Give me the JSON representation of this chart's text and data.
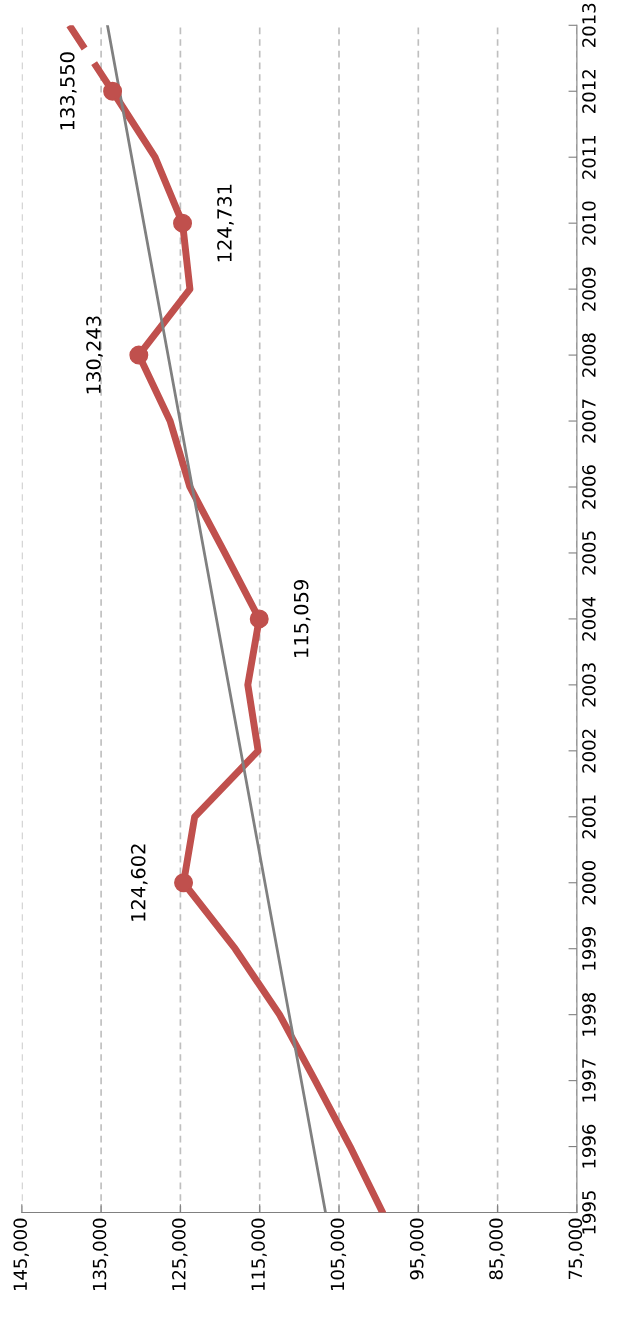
{
  "chart_data": {
    "type": "line",
    "orientation": "horizontal",
    "categories": [
      "2013",
      "2012",
      "2011",
      "2010",
      "2009",
      "2008",
      "2007",
      "2006",
      "2005",
      "2004",
      "2003",
      "2002",
      "2001",
      "2000",
      "1999",
      "1998",
      "1997",
      "1996",
      "1995"
    ],
    "series": [
      {
        "color": "#c0504d",
        "values": [
          null,
          133550,
          128200,
          124731,
          123800,
          130243,
          126300,
          123800,
          119400,
          115059,
          116500,
          115200,
          123200,
          124602,
          118100,
          112500,
          108000,
          103600,
          99500
        ]
      },
      {
        "color": "#c0504d",
        "line_style": "dashed",
        "values": [
          139000,
          133550,
          null,
          null,
          null,
          null,
          null,
          null,
          null,
          null,
          null,
          null,
          null,
          null,
          null,
          null,
          null,
          null,
          null
        ]
      },
      {
        "type": "scatter",
        "color": "#c0504d",
        "marker": "circle",
        "values": [
          null,
          133550,
          null,
          124731,
          null,
          130243,
          null,
          null,
          null,
          115059,
          null,
          null,
          null,
          124602,
          null,
          null,
          null,
          null,
          null
        ],
        "value_labels": [
          null,
          "133,550",
          null,
          "124,731",
          null,
          "130,243",
          null,
          null,
          null,
          "115,059",
          null,
          null,
          null,
          "124,602",
          null,
          null,
          null,
          null,
          null
        ]
      },
      {
        "color": "#808080",
        "values": [
          134200,
          null,
          null,
          null,
          null,
          null,
          null,
          null,
          null,
          null,
          null,
          null,
          null,
          null,
          null,
          null,
          null,
          null,
          106700
        ]
      }
    ],
    "xlim": [
      145000,
      75000
    ],
    "xticks": [
      {
        "value": 145000,
        "label": "145,000"
      },
      {
        "value": 135000,
        "label": "135,000"
      },
      {
        "value": 125000,
        "label": "125,000"
      },
      {
        "value": 115000,
        "label": "115,000"
      },
      {
        "value": 105000,
        "label": "105,000"
      },
      {
        "value": 95000,
        "label": "95,000"
      },
      {
        "value": 85000,
        "label": "85,000"
      },
      {
        "value": 75000,
        "label": "75,000"
      }
    ],
    "grid": "x",
    "line_style": "solid",
    "marker": "none"
  }
}
